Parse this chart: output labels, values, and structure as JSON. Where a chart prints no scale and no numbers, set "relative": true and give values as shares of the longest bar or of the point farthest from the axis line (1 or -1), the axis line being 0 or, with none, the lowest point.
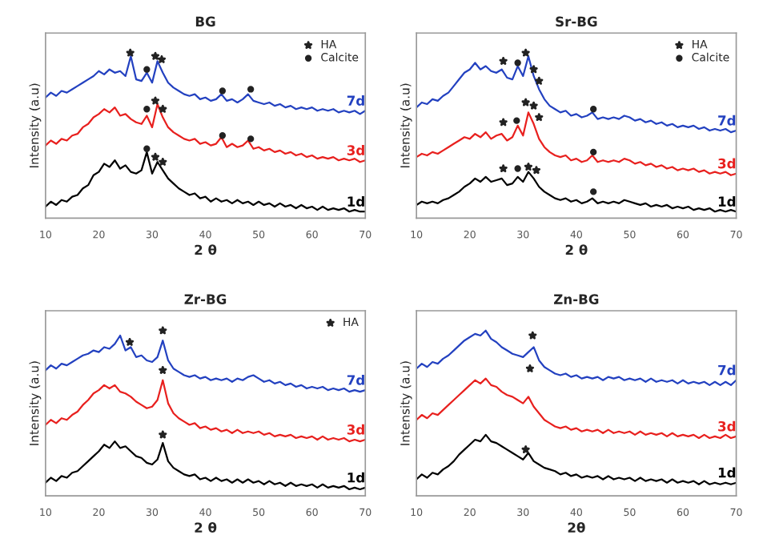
{
  "chart_data": [
    {
      "type": "line",
      "title": "BG",
      "xlabel": "2 θ",
      "ylabel": "Intensity (a.u)",
      "relative": true,
      "xlim": [
        10,
        70
      ],
      "xticks": [
        10,
        20,
        30,
        40,
        50,
        60,
        70
      ],
      "legend": "top right",
      "x": [
        10,
        11,
        12,
        13,
        14,
        15,
        16,
        17,
        18,
        19,
        20,
        21,
        22,
        23,
        24,
        25,
        26,
        27,
        28,
        29,
        30,
        31,
        32,
        33,
        34,
        35,
        36,
        37,
        38,
        39,
        40,
        41,
        42,
        43,
        44,
        45,
        46,
        47,
        48,
        49,
        50,
        51,
        52,
        53,
        54,
        55,
        56,
        57,
        58,
        59,
        60,
        61,
        62,
        63,
        64,
        65,
        66,
        67,
        68,
        69,
        70
      ],
      "series": [
        {
          "name": "1d",
          "color": "#000000",
          "values": [
            0.07,
            0.1,
            0.08,
            0.11,
            0.1,
            0.13,
            0.14,
            0.18,
            0.2,
            0.26,
            0.28,
            0.33,
            0.31,
            0.35,
            0.3,
            0.32,
            0.28,
            0.27,
            0.29,
            0.4,
            0.27,
            0.34,
            0.29,
            0.24,
            0.21,
            0.18,
            0.16,
            0.14,
            0.15,
            0.12,
            0.13,
            0.1,
            0.12,
            0.1,
            0.11,
            0.09,
            0.11,
            0.09,
            0.1,
            0.08,
            0.1,
            0.08,
            0.09,
            0.07,
            0.09,
            0.07,
            0.08,
            0.06,
            0.08,
            0.06,
            0.07,
            0.05,
            0.07,
            0.05,
            0.06,
            0.05,
            0.06,
            0.04,
            0.05,
            0.04,
            0.04
          ]
        },
        {
          "name": "3d",
          "color": "#e8201e",
          "values": [
            0.44,
            0.47,
            0.45,
            0.48,
            0.47,
            0.5,
            0.51,
            0.55,
            0.57,
            0.61,
            0.63,
            0.66,
            0.64,
            0.67,
            0.62,
            0.63,
            0.6,
            0.58,
            0.57,
            0.62,
            0.55,
            0.69,
            0.61,
            0.55,
            0.52,
            0.5,
            0.48,
            0.47,
            0.48,
            0.45,
            0.46,
            0.44,
            0.45,
            0.49,
            0.43,
            0.45,
            0.43,
            0.44,
            0.47,
            0.42,
            0.43,
            0.41,
            0.42,
            0.4,
            0.41,
            0.39,
            0.4,
            0.38,
            0.39,
            0.37,
            0.38,
            0.36,
            0.37,
            0.36,
            0.37,
            0.35,
            0.36,
            0.35,
            0.36,
            0.34,
            0.35
          ]
        },
        {
          "name": "7d",
          "color": "#2341c0",
          "values": [
            0.73,
            0.76,
            0.74,
            0.77,
            0.76,
            0.78,
            0.8,
            0.82,
            0.84,
            0.86,
            0.89,
            0.87,
            0.9,
            0.88,
            0.89,
            0.86,
            0.98,
            0.84,
            0.83,
            0.88,
            0.82,
            0.95,
            0.88,
            0.82,
            0.79,
            0.77,
            0.75,
            0.74,
            0.75,
            0.72,
            0.73,
            0.71,
            0.72,
            0.75,
            0.71,
            0.72,
            0.7,
            0.72,
            0.75,
            0.71,
            0.7,
            0.69,
            0.7,
            0.68,
            0.69,
            0.67,
            0.68,
            0.66,
            0.67,
            0.66,
            0.67,
            0.65,
            0.66,
            0.65,
            0.66,
            0.64,
            0.65,
            0.64,
            0.65,
            0.63,
            0.65
          ]
        },
        {
          "name": "HA",
          "type": "scatter",
          "marker": "star",
          "color": "#222222",
          "x": [
            25.9,
            30.6,
            31.8,
            30.6,
            32,
            30.6,
            32
          ],
          "values": [
            1.0,
            0.98,
            0.96,
            0.71,
            0.66,
            0.37,
            0.34
          ]
        },
        {
          "name": "Calcite",
          "type": "scatter",
          "marker": "circle",
          "color": "#222222",
          "x": [
            29,
            43.2,
            48.5,
            29,
            43.2,
            48.5,
            29
          ],
          "values": [
            0.9,
            0.77,
            0.78,
            0.66,
            0.5,
            0.48,
            0.42
          ]
        }
      ]
    },
    {
      "type": "line",
      "title": "Sr-BG",
      "xlabel": "2 θ",
      "ylabel": "Intensity (a.u)",
      "relative": true,
      "xlim": [
        10,
        70
      ],
      "xticks": [
        10,
        20,
        30,
        40,
        50,
        60,
        70
      ],
      "legend": "top right",
      "x": [
        10,
        11,
        12,
        13,
        14,
        15,
        16,
        17,
        18,
        19,
        20,
        21,
        22,
        23,
        24,
        25,
        26,
        27,
        28,
        29,
        30,
        31,
        32,
        33,
        34,
        35,
        36,
        37,
        38,
        39,
        40,
        41,
        42,
        43,
        44,
        45,
        46,
        47,
        48,
        49,
        50,
        51,
        52,
        53,
        54,
        55,
        56,
        57,
        58,
        59,
        60,
        61,
        62,
        63,
        64,
        65,
        66,
        67,
        68,
        69,
        70
      ],
      "series": [
        {
          "name": "1d",
          "color": "#000000",
          "values": [
            0.08,
            0.1,
            0.09,
            0.1,
            0.09,
            0.11,
            0.12,
            0.14,
            0.16,
            0.19,
            0.21,
            0.24,
            0.22,
            0.25,
            0.22,
            0.23,
            0.24,
            0.2,
            0.21,
            0.25,
            0.22,
            0.28,
            0.24,
            0.19,
            0.16,
            0.14,
            0.12,
            0.11,
            0.12,
            0.1,
            0.11,
            0.09,
            0.1,
            0.12,
            0.09,
            0.1,
            0.09,
            0.1,
            0.09,
            0.11,
            0.1,
            0.09,
            0.08,
            0.09,
            0.07,
            0.08,
            0.07,
            0.08,
            0.06,
            0.07,
            0.06,
            0.07,
            0.05,
            0.06,
            0.05,
            0.06,
            0.04,
            0.05,
            0.04,
            0.05,
            0.04
          ]
        },
        {
          "name": "3d",
          "color": "#e8201e",
          "values": [
            0.37,
            0.39,
            0.38,
            0.4,
            0.39,
            0.41,
            0.43,
            0.45,
            0.47,
            0.49,
            0.48,
            0.51,
            0.49,
            0.52,
            0.48,
            0.5,
            0.51,
            0.47,
            0.49,
            0.56,
            0.5,
            0.64,
            0.57,
            0.48,
            0.43,
            0.4,
            0.38,
            0.37,
            0.38,
            0.35,
            0.36,
            0.34,
            0.35,
            0.38,
            0.34,
            0.35,
            0.34,
            0.35,
            0.34,
            0.36,
            0.35,
            0.33,
            0.34,
            0.32,
            0.33,
            0.31,
            0.32,
            0.3,
            0.31,
            0.29,
            0.3,
            0.29,
            0.3,
            0.28,
            0.29,
            0.27,
            0.28,
            0.27,
            0.28,
            0.26,
            0.27
          ]
        },
        {
          "name": "7d",
          "color": "#2341c0",
          "values": [
            0.67,
            0.7,
            0.69,
            0.72,
            0.71,
            0.74,
            0.76,
            0.8,
            0.84,
            0.88,
            0.9,
            0.94,
            0.9,
            0.92,
            0.89,
            0.88,
            0.9,
            0.85,
            0.84,
            0.92,
            0.86,
            0.98,
            0.86,
            0.78,
            0.72,
            0.68,
            0.66,
            0.64,
            0.65,
            0.62,
            0.63,
            0.61,
            0.62,
            0.64,
            0.6,
            0.61,
            0.6,
            0.61,
            0.6,
            0.62,
            0.61,
            0.59,
            0.6,
            0.58,
            0.59,
            0.57,
            0.58,
            0.56,
            0.57,
            0.55,
            0.56,
            0.55,
            0.56,
            0.54,
            0.55,
            0.53,
            0.54,
            0.53,
            0.54,
            0.52,
            0.53
          ]
        },
        {
          "name": "HA",
          "type": "scatter",
          "marker": "star",
          "color": "#222222",
          "x": [
            26.3,
            30.5,
            32,
            33,
            26.3,
            30.5,
            32,
            33,
            26.3,
            31,
            32.5
          ],
          "values": [
            0.95,
            1.0,
            0.9,
            0.83,
            0.58,
            0.7,
            0.68,
            0.61,
            0.3,
            0.31,
            0.29
          ]
        },
        {
          "name": "Calcite",
          "type": "scatter",
          "marker": "circle",
          "color": "#222222",
          "x": [
            29,
            43.2,
            28.8,
            43.2,
            29,
            43.2
          ],
          "values": [
            0.94,
            0.66,
            0.59,
            0.4,
            0.3,
            0.16
          ]
        }
      ]
    },
    {
      "type": "line",
      "title": "Zr-BG",
      "xlabel": "2 θ",
      "ylabel": "Intensity (a.u)",
      "relative": true,
      "xlim": [
        10,
        70
      ],
      "xticks": [
        10,
        20,
        30,
        40,
        50,
        60,
        70
      ],
      "legend": "top right",
      "x": [
        10,
        11,
        12,
        13,
        14,
        15,
        16,
        17,
        18,
        19,
        20,
        21,
        22,
        23,
        24,
        25,
        26,
        27,
        28,
        29,
        30,
        31,
        32,
        33,
        34,
        35,
        36,
        37,
        38,
        39,
        40,
        41,
        42,
        43,
        44,
        45,
        46,
        47,
        48,
        49,
        50,
        51,
        52,
        53,
        54,
        55,
        56,
        57,
        58,
        59,
        60,
        61,
        62,
        63,
        64,
        65,
        66,
        67,
        68,
        69,
        70
      ],
      "series": [
        {
          "name": "1d",
          "color": "#000000",
          "values": [
            0.08,
            0.11,
            0.09,
            0.12,
            0.11,
            0.14,
            0.15,
            0.18,
            0.21,
            0.24,
            0.27,
            0.31,
            0.29,
            0.33,
            0.29,
            0.3,
            0.27,
            0.24,
            0.23,
            0.2,
            0.19,
            0.22,
            0.32,
            0.21,
            0.17,
            0.15,
            0.13,
            0.12,
            0.13,
            0.1,
            0.11,
            0.09,
            0.11,
            0.09,
            0.1,
            0.08,
            0.1,
            0.08,
            0.1,
            0.08,
            0.09,
            0.07,
            0.09,
            0.07,
            0.08,
            0.06,
            0.08,
            0.06,
            0.07,
            0.06,
            0.07,
            0.05,
            0.07,
            0.05,
            0.06,
            0.05,
            0.06,
            0.04,
            0.05,
            0.04,
            0.05
          ]
        },
        {
          "name": "3d",
          "color": "#e8201e",
          "values": [
            0.43,
            0.46,
            0.44,
            0.47,
            0.46,
            0.49,
            0.51,
            0.55,
            0.58,
            0.62,
            0.64,
            0.67,
            0.65,
            0.67,
            0.63,
            0.62,
            0.6,
            0.57,
            0.55,
            0.53,
            0.54,
            0.58,
            0.7,
            0.56,
            0.5,
            0.47,
            0.45,
            0.43,
            0.44,
            0.41,
            0.42,
            0.4,
            0.41,
            0.39,
            0.4,
            0.38,
            0.4,
            0.38,
            0.39,
            0.38,
            0.39,
            0.37,
            0.38,
            0.36,
            0.37,
            0.36,
            0.37,
            0.35,
            0.36,
            0.35,
            0.36,
            0.34,
            0.36,
            0.34,
            0.35,
            0.34,
            0.35,
            0.33,
            0.34,
            0.33,
            0.34
          ]
        },
        {
          "name": "7d",
          "color": "#2341c0",
          "values": [
            0.76,
            0.79,
            0.77,
            0.8,
            0.79,
            0.81,
            0.83,
            0.85,
            0.86,
            0.88,
            0.87,
            0.9,
            0.89,
            0.92,
            0.97,
            0.88,
            0.9,
            0.84,
            0.85,
            0.82,
            0.81,
            0.84,
            0.94,
            0.82,
            0.77,
            0.75,
            0.73,
            0.72,
            0.73,
            0.71,
            0.72,
            0.7,
            0.71,
            0.7,
            0.71,
            0.69,
            0.71,
            0.7,
            0.72,
            0.73,
            0.71,
            0.69,
            0.7,
            0.68,
            0.69,
            0.67,
            0.68,
            0.66,
            0.67,
            0.65,
            0.66,
            0.65,
            0.66,
            0.64,
            0.65,
            0.64,
            0.65,
            0.63,
            0.64,
            0.63,
            0.64
          ]
        },
        {
          "name": "HA",
          "type": "scatter",
          "marker": "star",
          "color": "#222222",
          "x": [
            25.8,
            32,
            32,
            32
          ],
          "values": [
            0.93,
            1.0,
            0.76,
            0.37
          ]
        }
      ]
    },
    {
      "type": "line",
      "title": "Zn-BG",
      "xlabel": "2θ",
      "ylabel": "Intensity (a.u)",
      "relative": true,
      "xlim": [
        10,
        70
      ],
      "xticks": [
        10,
        20,
        30,
        40,
        50,
        60,
        70
      ],
      "x": [
        10,
        11,
        12,
        13,
        14,
        15,
        16,
        17,
        18,
        19,
        20,
        21,
        22,
        23,
        24,
        25,
        26,
        27,
        28,
        29,
        30,
        31,
        32,
        33,
        34,
        35,
        36,
        37,
        38,
        39,
        40,
        41,
        42,
        43,
        44,
        45,
        46,
        47,
        48,
        49,
        50,
        51,
        52,
        53,
        54,
        55,
        56,
        57,
        58,
        59,
        60,
        61,
        62,
        63,
        64,
        65,
        66,
        67,
        68,
        69,
        70
      ],
      "series": [
        {
          "name": "1d",
          "color": "#000000",
          "values": [
            0.1,
            0.13,
            0.11,
            0.14,
            0.13,
            0.16,
            0.18,
            0.21,
            0.25,
            0.28,
            0.31,
            0.34,
            0.33,
            0.37,
            0.33,
            0.32,
            0.3,
            0.28,
            0.26,
            0.24,
            0.22,
            0.26,
            0.21,
            0.19,
            0.17,
            0.16,
            0.15,
            0.13,
            0.14,
            0.12,
            0.13,
            0.11,
            0.12,
            0.11,
            0.12,
            0.1,
            0.12,
            0.1,
            0.11,
            0.1,
            0.11,
            0.09,
            0.11,
            0.09,
            0.1,
            0.09,
            0.1,
            0.08,
            0.1,
            0.08,
            0.09,
            0.08,
            0.09,
            0.07,
            0.09,
            0.07,
            0.08,
            0.07,
            0.08,
            0.07,
            0.08
          ]
        },
        {
          "name": "3d",
          "color": "#e8201e",
          "values": [
            0.46,
            0.49,
            0.47,
            0.5,
            0.49,
            0.52,
            0.55,
            0.58,
            0.61,
            0.64,
            0.67,
            0.7,
            0.68,
            0.71,
            0.67,
            0.66,
            0.63,
            0.61,
            0.6,
            0.58,
            0.56,
            0.6,
            0.54,
            0.5,
            0.46,
            0.44,
            0.42,
            0.41,
            0.42,
            0.4,
            0.41,
            0.39,
            0.4,
            0.39,
            0.4,
            0.38,
            0.4,
            0.38,
            0.39,
            0.38,
            0.39,
            0.37,
            0.39,
            0.37,
            0.38,
            0.37,
            0.38,
            0.36,
            0.38,
            0.36,
            0.37,
            0.36,
            0.37,
            0.35,
            0.37,
            0.35,
            0.36,
            0.35,
            0.37,
            0.35,
            0.36
          ]
        },
        {
          "name": "7d",
          "color": "#2341c0",
          "values": [
            0.77,
            0.8,
            0.78,
            0.81,
            0.8,
            0.83,
            0.85,
            0.88,
            0.91,
            0.94,
            0.96,
            0.98,
            0.97,
            1.0,
            0.95,
            0.93,
            0.9,
            0.88,
            0.86,
            0.85,
            0.84,
            0.87,
            0.9,
            0.82,
            0.78,
            0.76,
            0.74,
            0.73,
            0.74,
            0.72,
            0.73,
            0.71,
            0.72,
            0.71,
            0.72,
            0.7,
            0.72,
            0.71,
            0.72,
            0.7,
            0.71,
            0.7,
            0.71,
            0.69,
            0.71,
            0.69,
            0.7,
            0.69,
            0.7,
            0.68,
            0.7,
            0.68,
            0.69,
            0.68,
            0.69,
            0.67,
            0.69,
            0.67,
            0.69,
            0.67,
            0.7
          ]
        },
        {
          "type": "scatter",
          "marker": "star",
          "color": "#222222",
          "x": [
            31.8,
            31.3,
            30.5
          ],
          "values": [
            0.97,
            0.77,
            0.28
          ]
        }
      ]
    }
  ]
}
